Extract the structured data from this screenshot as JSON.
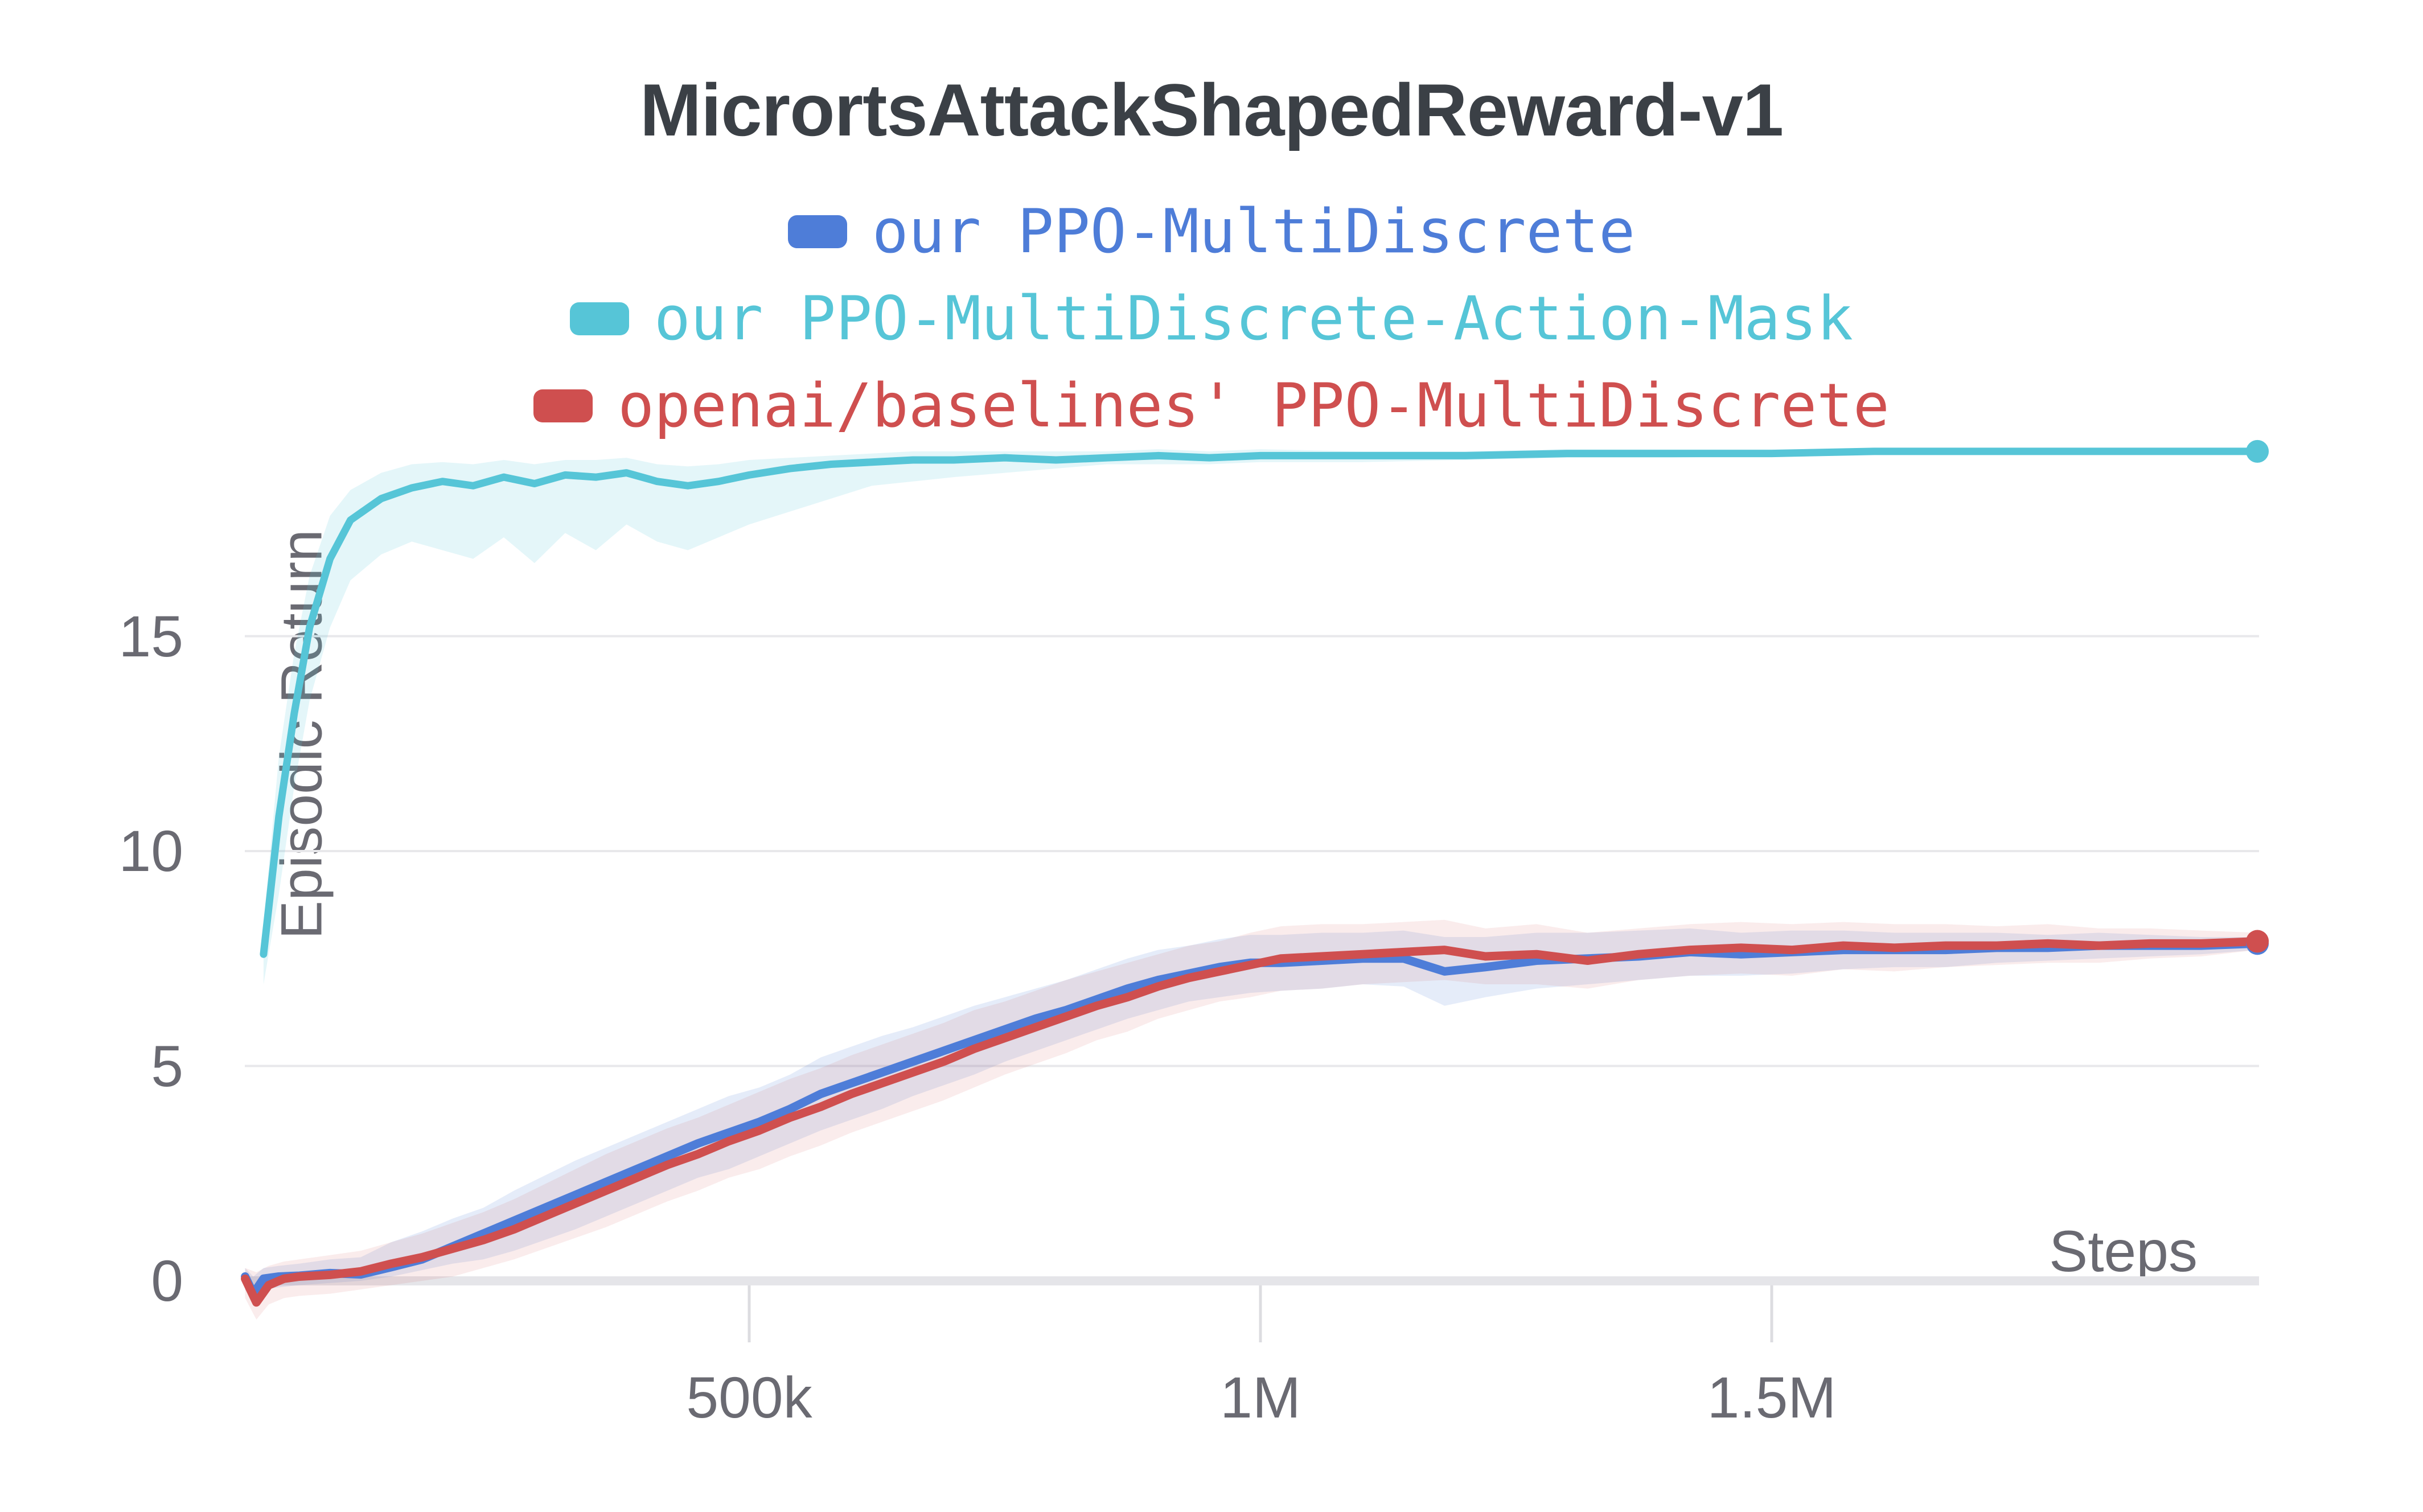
{
  "title": "MicrortsAttackShapedReward-v1",
  "legend": {
    "items": [
      {
        "label": "our PPO-MultiDiscrete",
        "color": "#4e7dd8"
      },
      {
        "label": "our PPO-MultiDiscrete-Action-Mask",
        "color": "#56c5d7"
      },
      {
        "label": "openai/baselines' PPO-MultiDiscrete",
        "color": "#cf4f4f"
      }
    ]
  },
  "axes": {
    "y_label": "Episodic Return",
    "x_label": "Steps",
    "y_ticks": [
      {
        "label": "15",
        "value": 15
      },
      {
        "label": "10",
        "value": 10
      },
      {
        "label": "5",
        "value": 5
      },
      {
        "label": "0",
        "value": 0
      }
    ],
    "x_ticks": [
      {
        "label": "500k",
        "value": 500
      },
      {
        "label": "1M",
        "value": 1000
      },
      {
        "label": "1.5M",
        "value": 1500
      }
    ]
  },
  "chart_data": {
    "type": "line",
    "title": "MicrortsAttackShapedReward-v1",
    "xlabel": "Steps",
    "ylabel": "Episodic Return",
    "x_unit": "thousands of steps",
    "xlim": [
      7,
      1975
    ],
    "ylim": [
      -0.6,
      19.5
    ],
    "grid_y_values": [
      5,
      10,
      15
    ],
    "zero_line": true,
    "legend_position": "top",
    "series": [
      {
        "name": "our PPO-MultiDiscrete-Action-Mask",
        "color": "#56c5d7",
        "band_color": "rgba(86,197,215,0.16)",
        "line_width": 13,
        "end_marker": true,
        "x": [
          25,
          40,
          55,
          70,
          90,
          110,
          140,
          170,
          200,
          230,
          260,
          290,
          320,
          350,
          380,
          410,
          440,
          470,
          500,
          540,
          580,
          620,
          660,
          700,
          750,
          800,
          850,
          900,
          950,
          1000,
          1100,
          1200,
          1300,
          1400,
          1500,
          1600,
          1700,
          1800,
          1900,
          1975
        ],
        "y": [
          7.6,
          10.8,
          13.2,
          15.2,
          16.8,
          17.7,
          18.2,
          18.45,
          18.6,
          18.5,
          18.7,
          18.55,
          18.75,
          18.7,
          18.8,
          18.6,
          18.5,
          18.6,
          18.75,
          18.9,
          19.0,
          19.05,
          19.1,
          19.1,
          19.15,
          19.1,
          19.15,
          19.2,
          19.15,
          19.2,
          19.2,
          19.2,
          19.25,
          19.25,
          19.25,
          19.3,
          19.3,
          19.3,
          19.3,
          19.3
        ],
        "lo": [
          6.9,
          9.0,
          11.5,
          13.5,
          15.2,
          16.3,
          16.9,
          17.2,
          17.0,
          16.8,
          17.3,
          16.7,
          17.4,
          17.0,
          17.6,
          17.2,
          17.0,
          17.3,
          17.6,
          17.9,
          18.2,
          18.5,
          18.6,
          18.7,
          18.8,
          18.9,
          19.0,
          19.0,
          19.0,
          19.05,
          19.05,
          19.1,
          19.15,
          19.15,
          19.2,
          19.25,
          19.25,
          19.25,
          19.25,
          19.3
        ],
        "hi": [
          8.3,
          12.2,
          14.6,
          16.4,
          17.8,
          18.4,
          18.8,
          19.0,
          19.05,
          19.0,
          19.1,
          19.0,
          19.1,
          19.1,
          19.15,
          19.0,
          18.95,
          19.0,
          19.1,
          19.15,
          19.2,
          19.25,
          19.3,
          19.3,
          19.3,
          19.3,
          19.3,
          19.35,
          19.3,
          19.35,
          19.3,
          19.3,
          19.35,
          19.35,
          19.35,
          19.35,
          19.35,
          19.35,
          19.35,
          19.3
        ]
      },
      {
        "name": "our PPO-MultiDiscrete",
        "color": "#4e7dd8",
        "band_color": "rgba(78,125,216,0.15)",
        "line_width": 15,
        "end_marker": true,
        "x": [
          7,
          15,
          25,
          40,
          60,
          90,
          120,
          150,
          180,
          210,
          240,
          270,
          300,
          330,
          360,
          390,
          420,
          450,
          480,
          510,
          540,
          570,
          600,
          630,
          660,
          690,
          720,
          750,
          780,
          810,
          840,
          870,
          900,
          930,
          960,
          990,
          1020,
          1060,
          1100,
          1140,
          1180,
          1220,
          1270,
          1320,
          1370,
          1420,
          1470,
          1520,
          1570,
          1620,
          1670,
          1720,
          1770,
          1820,
          1870,
          1920,
          1975
        ],
        "y": [
          0.1,
          -0.3,
          0.05,
          0.1,
          0.12,
          0.18,
          0.15,
          0.32,
          0.5,
          0.8,
          1.1,
          1.4,
          1.7,
          2.0,
          2.3,
          2.6,
          2.9,
          3.2,
          3.45,
          3.7,
          4.0,
          4.35,
          4.6,
          4.85,
          5.1,
          5.35,
          5.6,
          5.85,
          6.1,
          6.3,
          6.55,
          6.8,
          7.0,
          7.15,
          7.3,
          7.4,
          7.4,
          7.45,
          7.5,
          7.5,
          7.2,
          7.3,
          7.45,
          7.5,
          7.55,
          7.65,
          7.6,
          7.65,
          7.7,
          7.7,
          7.7,
          7.75,
          7.75,
          7.8,
          7.8,
          7.8,
          7.85
        ],
        "lo": [
          -0.2,
          -0.45,
          -0.2,
          -0.15,
          -0.1,
          -0.05,
          0.0,
          0.1,
          0.25,
          0.4,
          0.5,
          0.7,
          0.95,
          1.2,
          1.5,
          1.8,
          2.1,
          2.4,
          2.6,
          2.9,
          3.2,
          3.5,
          3.75,
          4.0,
          4.3,
          4.55,
          4.8,
          5.1,
          5.35,
          5.6,
          5.85,
          6.1,
          6.3,
          6.5,
          6.6,
          6.7,
          6.75,
          6.8,
          6.9,
          6.85,
          6.4,
          6.6,
          6.8,
          6.9,
          7.0,
          7.1,
          7.1,
          7.15,
          7.25,
          7.3,
          7.3,
          7.4,
          7.45,
          7.5,
          7.55,
          7.6,
          7.7
        ],
        "hi": [
          0.3,
          0.1,
          0.3,
          0.35,
          0.4,
          0.5,
          0.55,
          0.9,
          1.15,
          1.45,
          1.7,
          2.1,
          2.45,
          2.8,
          3.1,
          3.4,
          3.7,
          4.0,
          4.3,
          4.5,
          4.8,
          5.2,
          5.45,
          5.7,
          5.9,
          6.15,
          6.4,
          6.6,
          6.8,
          7.0,
          7.25,
          7.5,
          7.7,
          7.8,
          7.95,
          8.05,
          8.05,
          8.1,
          8.1,
          8.15,
          8.0,
          8.0,
          8.1,
          8.1,
          8.15,
          8.2,
          8.1,
          8.15,
          8.15,
          8.1,
          8.1,
          8.1,
          8.05,
          8.1,
          8.05,
          8.0,
          8.0
        ]
      },
      {
        "name": "openai/baselines' PPO-MultiDiscrete",
        "color": "#cf4f4f",
        "band_color": "rgba(207,79,79,0.11)",
        "line_width": 15,
        "end_marker": true,
        "x": [
          7,
          18,
          30,
          45,
          60,
          90,
          120,
          150,
          180,
          210,
          240,
          270,
          300,
          330,
          360,
          390,
          420,
          450,
          480,
          510,
          540,
          570,
          600,
          630,
          660,
          690,
          720,
          750,
          780,
          810,
          840,
          870,
          900,
          930,
          960,
          990,
          1020,
          1060,
          1100,
          1140,
          1180,
          1220,
          1270,
          1320,
          1370,
          1420,
          1470,
          1520,
          1570,
          1620,
          1670,
          1720,
          1770,
          1820,
          1870,
          1920,
          1975
        ],
        "y": [
          0.05,
          -0.5,
          -0.1,
          0.05,
          0.1,
          0.14,
          0.22,
          0.4,
          0.55,
          0.75,
          0.95,
          1.2,
          1.5,
          1.8,
          2.1,
          2.4,
          2.7,
          2.95,
          3.25,
          3.5,
          3.8,
          4.05,
          4.35,
          4.6,
          4.85,
          5.1,
          5.4,
          5.65,
          5.9,
          6.15,
          6.4,
          6.6,
          6.85,
          7.05,
          7.2,
          7.35,
          7.5,
          7.55,
          7.6,
          7.65,
          7.7,
          7.55,
          7.6,
          7.45,
          7.6,
          7.7,
          7.75,
          7.7,
          7.8,
          7.75,
          7.8,
          7.8,
          7.85,
          7.8,
          7.85,
          7.85,
          7.9
        ],
        "lo": [
          -0.4,
          -0.9,
          -0.55,
          -0.4,
          -0.35,
          -0.3,
          -0.2,
          -0.1,
          0.0,
          0.1,
          0.3,
          0.5,
          0.75,
          1.0,
          1.25,
          1.55,
          1.85,
          2.1,
          2.4,
          2.6,
          2.9,
          3.15,
          3.45,
          3.7,
          3.95,
          4.2,
          4.5,
          4.8,
          5.05,
          5.3,
          5.6,
          5.8,
          6.1,
          6.3,
          6.5,
          6.6,
          6.75,
          6.8,
          6.9,
          6.95,
          7.0,
          6.9,
          6.9,
          6.8,
          7.0,
          7.1,
          7.15,
          7.1,
          7.25,
          7.2,
          7.3,
          7.35,
          7.4,
          7.4,
          7.5,
          7.55,
          7.7
        ],
        "hi": [
          0.3,
          0.2,
          0.35,
          0.45,
          0.5,
          0.6,
          0.7,
          0.9,
          1.1,
          1.35,
          1.6,
          1.9,
          2.25,
          2.6,
          2.95,
          3.25,
          3.55,
          3.8,
          4.1,
          4.4,
          4.7,
          4.95,
          5.25,
          5.5,
          5.75,
          6.0,
          6.3,
          6.5,
          6.75,
          7.0,
          7.2,
          7.4,
          7.6,
          7.8,
          7.9,
          8.1,
          8.25,
          8.3,
          8.3,
          8.35,
          8.4,
          8.2,
          8.3,
          8.1,
          8.2,
          8.3,
          8.35,
          8.3,
          8.35,
          8.3,
          8.3,
          8.25,
          8.3,
          8.2,
          8.2,
          8.15,
          8.1
        ]
      }
    ]
  },
  "style": {
    "title_color": "#3b4046",
    "label_color": "#6a6a72",
    "gridline_color": "#e8e8eb",
    "zero_line_color": "#e5e5e9",
    "tick_mark_color": "#dcdce0"
  }
}
